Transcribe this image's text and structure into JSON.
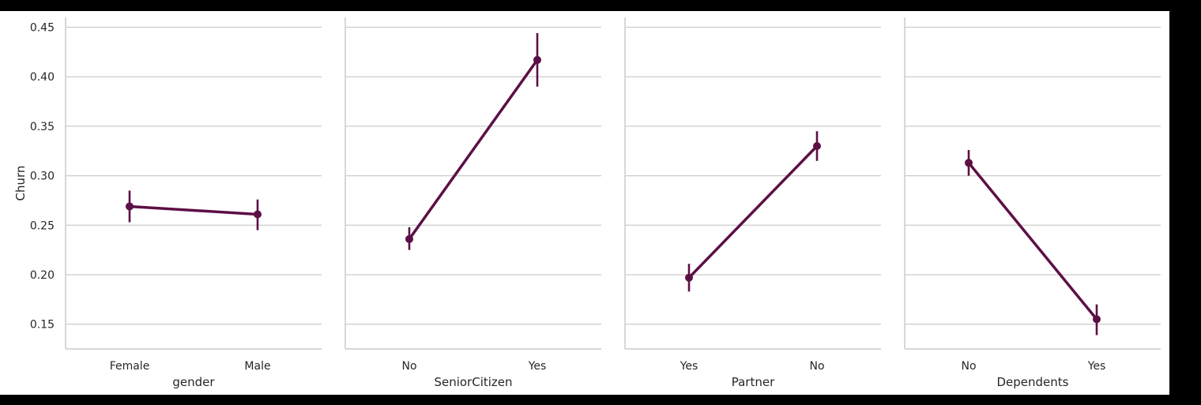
{
  "chart_data": {
    "type": "pointplot",
    "ylabel": "Churn",
    "ylim": [
      0.125,
      0.46
    ],
    "yticks": [
      0.15,
      0.2,
      0.25,
      0.3,
      0.35,
      0.4,
      0.45
    ],
    "ytick_labels": [
      "0.15",
      "0.20",
      "0.25",
      "0.30",
      "0.35",
      "0.40",
      "0.45"
    ],
    "grid": "horizontal",
    "color": "#5c0f45",
    "panels": [
      {
        "xlabel": "gender",
        "categories": [
          "Female",
          "Male"
        ],
        "values": [
          0.269,
          0.261
        ],
        "ci": [
          [
            0.253,
            0.285
          ],
          [
            0.245,
            0.276
          ]
        ]
      },
      {
        "xlabel": "SeniorCitizen",
        "categories": [
          "No",
          "Yes"
        ],
        "values": [
          0.236,
          0.417
        ],
        "ci": [
          [
            0.225,
            0.248
          ],
          [
            0.39,
            0.444
          ]
        ]
      },
      {
        "xlabel": "Partner",
        "categories": [
          "Yes",
          "No"
        ],
        "values": [
          0.197,
          0.33
        ],
        "ci": [
          [
            0.183,
            0.211
          ],
          [
            0.315,
            0.345
          ]
        ]
      },
      {
        "xlabel": "Dependents",
        "categories": [
          "No",
          "Yes"
        ],
        "values": [
          0.313,
          0.155
        ],
        "ci": [
          [
            0.3,
            0.326
          ],
          [
            0.139,
            0.17
          ]
        ]
      }
    ]
  }
}
